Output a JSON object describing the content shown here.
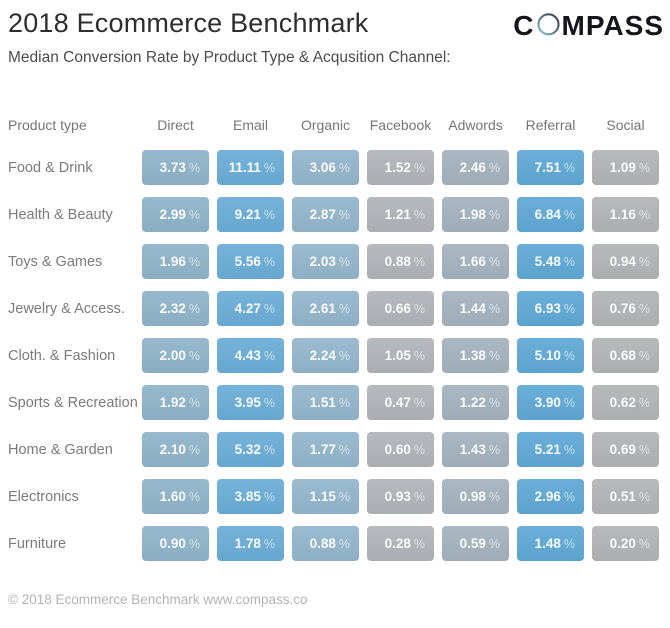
{
  "header": {
    "title": "2018 Ecommerce Benchmark",
    "subtitle": "Median Conversion Rate by Product Type & Acqusition Channel:",
    "logo_text_start": "C",
    "logo_text_end": "MPASS"
  },
  "footer": {
    "copyright": "© 2018 Ecommerce Benchmark www.compass.co"
  },
  "chart_data": {
    "type": "heatmap",
    "title": "2018 Ecommerce Benchmark",
    "subtitle": "Median Conversion Rate by Product Type & Acqusition Channel:",
    "corner_label": "Product type",
    "unit": "%",
    "legend_position": "none",
    "columns": [
      "Direct",
      "Email",
      "Organic",
      "Facebook",
      "Adwords",
      "Referral",
      "Social"
    ],
    "column_colors": [
      "#8fb4ca",
      "#6badd7",
      "#93b6cc",
      "#b1b4b8",
      "#a4b3bf",
      "#5fa9d6",
      "#b2b4b6"
    ],
    "rows": [
      "Food & Drink",
      "Health & Beauty",
      "Toys & Games",
      "Jewelry & Access.",
      "Cloth. & Fashion",
      "Sports & Recreation",
      "Home & Garden",
      "Electronics",
      "Furniture"
    ],
    "values": [
      [
        3.73,
        11.11,
        3.06,
        1.52,
        2.46,
        7.51,
        1.09
      ],
      [
        2.99,
        9.21,
        2.87,
        1.21,
        1.98,
        6.84,
        1.16
      ],
      [
        1.96,
        5.56,
        2.03,
        0.88,
        1.66,
        5.48,
        0.94
      ],
      [
        2.32,
        4.27,
        2.61,
        0.66,
        1.44,
        6.93,
        0.76
      ],
      [
        2.0,
        4.43,
        2.24,
        1.05,
        1.38,
        5.1,
        0.68
      ],
      [
        1.92,
        3.95,
        1.51,
        0.47,
        1.22,
        3.9,
        0.62
      ],
      [
        2.1,
        5.32,
        1.77,
        0.6,
        1.43,
        5.21,
        0.69
      ],
      [
        1.6,
        3.85,
        1.15,
        0.93,
        0.98,
        2.96,
        0.51
      ],
      [
        0.9,
        1.78,
        0.88,
        0.28,
        0.59,
        1.48,
        0.2
      ]
    ],
    "value_format": "0.00 %",
    "logo_color_accent": "#7fc3dc",
    "logo_color_text": "#15151c"
  }
}
